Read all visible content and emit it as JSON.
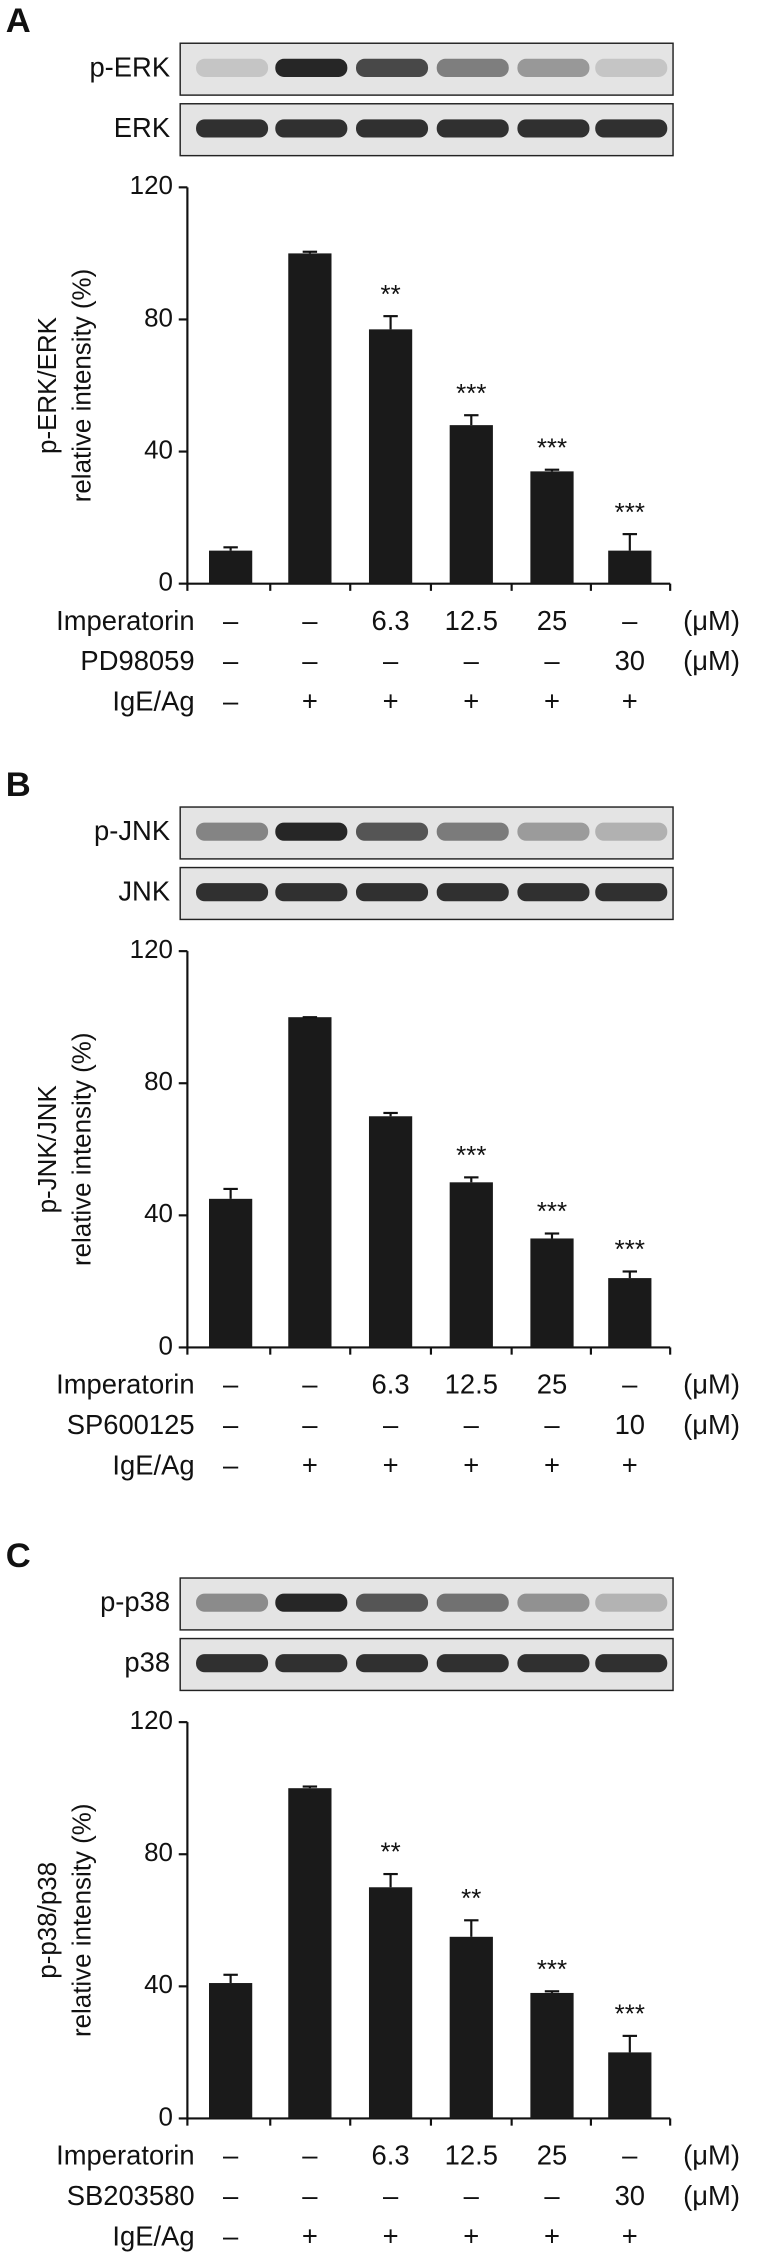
{
  "chart_data": [
    {
      "type": "bar",
      "panel": "A",
      "blots": [
        "p-ERK",
        "ERK"
      ],
      "ylabel": [
        "p-ERK/ERK",
        "relative intensity (%)"
      ],
      "values": [
        10,
        100,
        77,
        48,
        34,
        10
      ],
      "errors": [
        1,
        0.5,
        4,
        3,
        0.5,
        5
      ],
      "annotations": [
        null,
        null,
        "**",
        "***",
        "***",
        "***"
      ],
      "color": "#1a1a1a",
      "ylim": [
        0,
        120
      ],
      "yticks": [
        0,
        40,
        80,
        120
      ],
      "treatments": [
        {
          "name": "Imperatorin",
          "labels": [
            "–",
            "–",
            "6.3",
            "12.5",
            "25",
            "–"
          ],
          "unit": "(μM)"
        },
        {
          "name": "PD98059",
          "labels": [
            "–",
            "–",
            "–",
            "–",
            "–",
            "30"
          ],
          "unit": "(μM)"
        },
        {
          "name": "IgE/Ag",
          "labels": [
            "–",
            "+",
            "+",
            "+",
            "+",
            "+"
          ]
        }
      ]
    },
    {
      "type": "bar",
      "panel": "B",
      "blots": [
        "p-JNK",
        "JNK"
      ],
      "ylabel": [
        "p-JNK/JNK",
        "relative intensity (%)"
      ],
      "values": [
        45,
        100,
        70,
        50,
        33,
        21
      ],
      "errors": [
        3,
        0,
        1,
        1.5,
        1.5,
        2
      ],
      "annotations": [
        null,
        null,
        null,
        "***",
        "***",
        "***"
      ],
      "color": "#1a1a1a",
      "ylim": [
        0,
        120
      ],
      "yticks": [
        0,
        40,
        80,
        120
      ],
      "treatments": [
        {
          "name": "Imperatorin",
          "labels": [
            "–",
            "–",
            "6.3",
            "12.5",
            "25",
            "–"
          ],
          "unit": "(μM)"
        },
        {
          "name": "SP600125",
          "labels": [
            "–",
            "–",
            "–",
            "–",
            "–",
            "10"
          ],
          "unit": "(μM)"
        },
        {
          "name": "IgE/Ag",
          "labels": [
            "–",
            "+",
            "+",
            "+",
            "+",
            "+"
          ]
        }
      ]
    },
    {
      "type": "bar",
      "panel": "C",
      "blots": [
        "p-p38",
        "p38"
      ],
      "ylabel": [
        "p-p38/p38",
        "relative intensity (%)"
      ],
      "values": [
        41,
        100,
        70,
        55,
        38,
        20
      ],
      "errors": [
        2.5,
        0.5,
        4,
        5,
        0.5,
        5
      ],
      "annotations": [
        null,
        null,
        "**",
        "**",
        "***",
        "***"
      ],
      "color": "#1a1a1a",
      "ylim": [
        0,
        120
      ],
      "yticks": [
        0,
        40,
        80,
        120
      ],
      "treatments": [
        {
          "name": "Imperatorin",
          "labels": [
            "–",
            "–",
            "6.3",
            "12.5",
            "25",
            "–"
          ],
          "unit": "(μM)"
        },
        {
          "name": "SB203580",
          "labels": [
            "–",
            "–",
            "–",
            "–",
            "–",
            "30"
          ],
          "unit": "(μM)"
        },
        {
          "name": "IgE/Ag",
          "labels": [
            "–",
            "+",
            "+",
            "+",
            "+",
            "+"
          ]
        }
      ]
    }
  ]
}
